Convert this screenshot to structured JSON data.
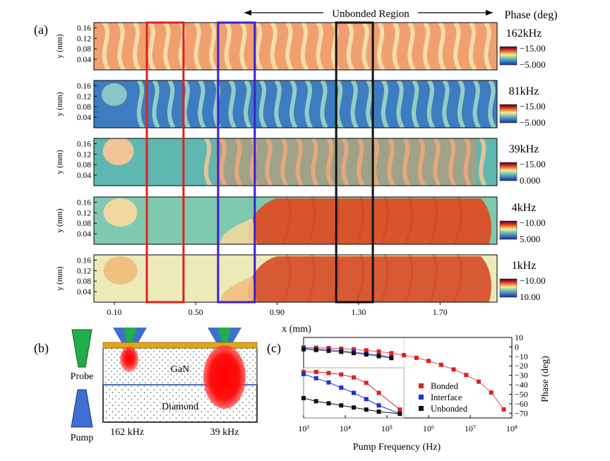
{
  "panel_labels": {
    "a": "(a)",
    "b": "(b)",
    "c": "(c)"
  },
  "header": {
    "region_label": "Unbonded Region",
    "phase_title": "Phase (deg)"
  },
  "panel_a": {
    "x_label": "x (mm)",
    "y_label": "y (mm)",
    "x_ticks": [
      "0.10",
      "0.50",
      "0.90",
      "1.30",
      "1.70"
    ],
    "y_ticks": [
      "0.16",
      "0.12",
      "0.08",
      "0.04"
    ],
    "maps": [
      {
        "freq": "162kHz",
        "scale_top": "−15.00",
        "scale_bottom": "−5.000",
        "pattern": "fringes-warm"
      },
      {
        "freq": "81kHz",
        "scale_top": "−15.00",
        "scale_bottom": "−5.000",
        "pattern": "fringes-blue"
      },
      {
        "freq": "39kHz",
        "scale_top": "−15.00",
        "scale_bottom": "0.000",
        "pattern": "fringes-teal"
      },
      {
        "freq": "4kHz",
        "scale_top": "−10.00",
        "scale_bottom": "5.000",
        "pattern": "bonded-unbonded"
      },
      {
        "freq": "1kHz",
        "scale_top": "−10.00",
        "scale_bottom": "10.00",
        "pattern": "bonded-unbonded-pale"
      }
    ],
    "region_boxes": [
      {
        "color": "#e02020",
        "x_from_mm": 0.26,
        "x_to_mm": 0.44
      },
      {
        "color": "#3a1fd0",
        "x_from_mm": 0.61,
        "x_to_mm": 0.79
      },
      {
        "color": "#111111",
        "x_from_mm": 1.19,
        "x_to_mm": 1.37
      }
    ],
    "colors": {
      "red_box": "#e02020",
      "blue_box": "#3a1fd0",
      "black_box": "#111111"
    }
  },
  "panel_b": {
    "probe_label": "Probe",
    "pump_label": "Pump",
    "gan_label": "GaN",
    "diamond_label": "Diamond",
    "freq_left": "162 kHz",
    "freq_right": "39 kHz",
    "colors": {
      "probe": "#1fae4a",
      "pump": "#3f6fd1",
      "gold": "#e2a514",
      "heat": "#ff1a1a"
    }
  },
  "chart_data": {
    "type": "scatter",
    "title": "",
    "xlabel": "Pump Frequency  (Hz)",
    "ylabel": "Phase (deg)",
    "x_scale": "log",
    "xlim": [
      1000,
      100000000
    ],
    "ylim": [
      -75,
      10
    ],
    "x_tick_labels": [
      "10³",
      "10⁴",
      "10⁵",
      "10⁶",
      "10⁷",
      "10⁸"
    ],
    "y_tick_labels": [
      "10",
      "0",
      "−10",
      "−20",
      "−30",
      "−40",
      "−50",
      "−60",
      "−70"
    ],
    "legend_placement": "right",
    "series": [
      {
        "name": "Bonded",
        "color": "#e02020",
        "x": [
          1000,
          2000,
          4000,
          8000,
          16000,
          32000,
          64000,
          128000,
          256000,
          512000,
          1000000,
          2000000,
          4000000,
          8000000,
          16000000,
          32000000,
          64000000
        ],
        "y": [
          -0.5,
          -0.8,
          -1.2,
          -1.8,
          -2.6,
          -3.6,
          -4.9,
          -6.6,
          -8.7,
          -11.5,
          -14.8,
          -18.9,
          -23.8,
          -29.6,
          -36.7,
          -48.2,
          -66.0
        ]
      },
      {
        "name": "Interface",
        "color": "#1f2fd8",
        "x": [
          1000,
          2000,
          4000,
          8000,
          16000,
          32000,
          64000,
          128000
        ],
        "y": [
          -1.5,
          -2.2,
          -3.0,
          -4.1,
          -5.4,
          -7.0,
          -8.8,
          -10.9
        ]
      },
      {
        "name": "Unbonded",
        "color": "#111111",
        "x": [
          1000,
          2000,
          4000,
          8000,
          16000,
          32000,
          64000,
          128000
        ],
        "y": [
          -2.5,
          -3.2,
          -4.1,
          -5.2,
          -6.5,
          -8.0,
          -9.8,
          -11.8
        ]
      }
    ],
    "inset": {
      "xlim": [
        1000,
        256000
      ],
      "series": [
        {
          "name": "Bonded",
          "y": [
            -2.0,
            -2.0,
            -2.5,
            -3.2,
            -4.6,
            -7.2,
            -12.0,
            -20.0
          ]
        },
        {
          "name": "Interface",
          "y": [
            -3.0,
            -5.0,
            -7.0,
            -9.5,
            -12.0,
            -15.0,
            -18.0,
            -22.0
          ]
        },
        {
          "name": "Unbonded",
          "y": [
            -14.5,
            -16.0,
            -17.0,
            -18.0,
            -19.0,
            -20.0,
            -21.0,
            -22.0
          ]
        }
      ]
    }
  }
}
